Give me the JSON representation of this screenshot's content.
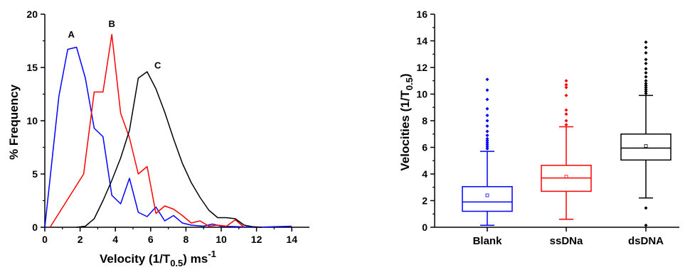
{
  "chart_data": [
    {
      "type": "line",
      "xlabel": "Velocity (1/T",
      "xlabel_sub": "0.5",
      "xlabel_unit": ") ms",
      "xlabel_sup": "-1",
      "ylabel": "% Frequency",
      "xlim": [
        0,
        15
      ],
      "ylim": [
        0,
        20
      ],
      "xticks": [
        "0",
        "2",
        "4",
        "6",
        "8",
        "10",
        "12",
        "14"
      ],
      "yticks": [
        "0",
        "5",
        "10",
        "15",
        "20"
      ],
      "colors": {
        "A": "#0000ff",
        "B": "#ff0000",
        "C": "#000000"
      },
      "annotations": [
        {
          "text": "A",
          "x": 1.5,
          "y": 17.8
        },
        {
          "text": "B",
          "x": 3.8,
          "y": 18.8
        },
        {
          "text": "C",
          "x": 6.4,
          "y": 14.9
        }
      ],
      "series": [
        {
          "key": "A",
          "x": [
            0,
            0.35,
            0.8,
            1.3,
            1.8,
            2.3,
            2.8,
            3.3,
            3.8,
            4.3,
            4.8,
            5.3,
            5.8,
            6.3,
            6.8,
            7.3,
            7.8,
            8.3,
            9.0,
            9.5,
            10.0,
            11.0,
            12.0,
            13.0,
            14.0
          ],
          "y": [
            0,
            5.4,
            12.3,
            16.7,
            16.9,
            14.0,
            9.3,
            8.5,
            3.0,
            2.2,
            4.6,
            1.4,
            1.0,
            1.9,
            0.6,
            1.1,
            0.4,
            0.2,
            0.1,
            0.3,
            0.1,
            0.05,
            0.0,
            0.05,
            0.1
          ]
        },
        {
          "key": "B",
          "x": [
            0.3,
            2.2,
            2.8,
            3.3,
            3.8,
            4.3,
            4.8,
            5.3,
            5.8,
            6.3,
            6.8,
            7.3,
            7.8,
            8.3,
            8.8,
            9.3,
            9.8,
            10.3,
            10.8,
            11.3
          ],
          "y": [
            0,
            5.0,
            12.7,
            12.7,
            18.1,
            10.7,
            8.4,
            5.0,
            5.7,
            1.3,
            2.0,
            1.7,
            1.1,
            0.4,
            0.6,
            0.1,
            0.2,
            0.1,
            0.7,
            0.0
          ]
        },
        {
          "key": "C",
          "x": [
            1.8,
            2.3,
            2.8,
            3.3,
            3.8,
            4.3,
            4.8,
            5.3,
            5.8,
            6.3,
            6.8,
            7.3,
            7.8,
            8.3,
            8.8,
            9.3,
            9.8,
            10.3,
            10.8,
            11.3,
            11.8,
            12.3
          ],
          "y": [
            0,
            0.1,
            0.8,
            2.5,
            4.4,
            6.5,
            9.1,
            14.0,
            14.6,
            13.0,
            10.8,
            8.3,
            6.0,
            4.2,
            2.8,
            1.6,
            0.9,
            0.9,
            0.8,
            0.2,
            0.05,
            0.0
          ]
        }
      ]
    },
    {
      "type": "box",
      "ylabel": "Velocities (1/T",
      "ylabel_sub": "0.5",
      "ylabel_end": ")",
      "ylim": [
        0,
        16
      ],
      "yticks": [
        "0",
        "2",
        "4",
        "6",
        "8",
        "10",
        "12",
        "14",
        "16"
      ],
      "categories": [
        "Blank",
        "ssDNa",
        "dsDNA"
      ],
      "boxes": [
        {
          "name": "Blank",
          "color": "#0000ff",
          "q1": 1.2,
          "median": 1.9,
          "q3": 3.05,
          "mean": 2.4,
          "whisker_low": 0.15,
          "whisker_high": 5.7,
          "outliers": [
            5.9,
            6.05,
            6.2,
            6.35,
            6.5,
            6.65,
            6.9,
            7.2,
            7.6,
            8.0,
            8.4,
            8.9,
            9.6,
            10.3,
            11.1
          ]
        },
        {
          "name": "ssDNa",
          "color": "#ff0000",
          "q1": 2.7,
          "median": 3.7,
          "q3": 4.65,
          "mean": 3.8,
          "whisker_low": 0.6,
          "whisker_high": 7.55,
          "outliers": [
            7.7,
            8.0,
            8.5,
            8.8,
            9.9,
            10.5,
            10.7,
            11.0
          ]
        },
        {
          "name": "dsDNA",
          "color": "#000000",
          "q1": 5.05,
          "median": 5.95,
          "q3": 7.0,
          "mean": 6.1,
          "whisker_low": 2.2,
          "whisker_high": 9.9,
          "outliers": [
            1.45,
            0.15,
            10.05,
            10.2,
            10.35,
            10.5,
            10.65,
            10.8,
            11.0,
            11.3,
            11.6,
            11.9,
            12.3,
            12.6,
            13.1,
            13.5,
            13.9
          ]
        }
      ]
    }
  ]
}
